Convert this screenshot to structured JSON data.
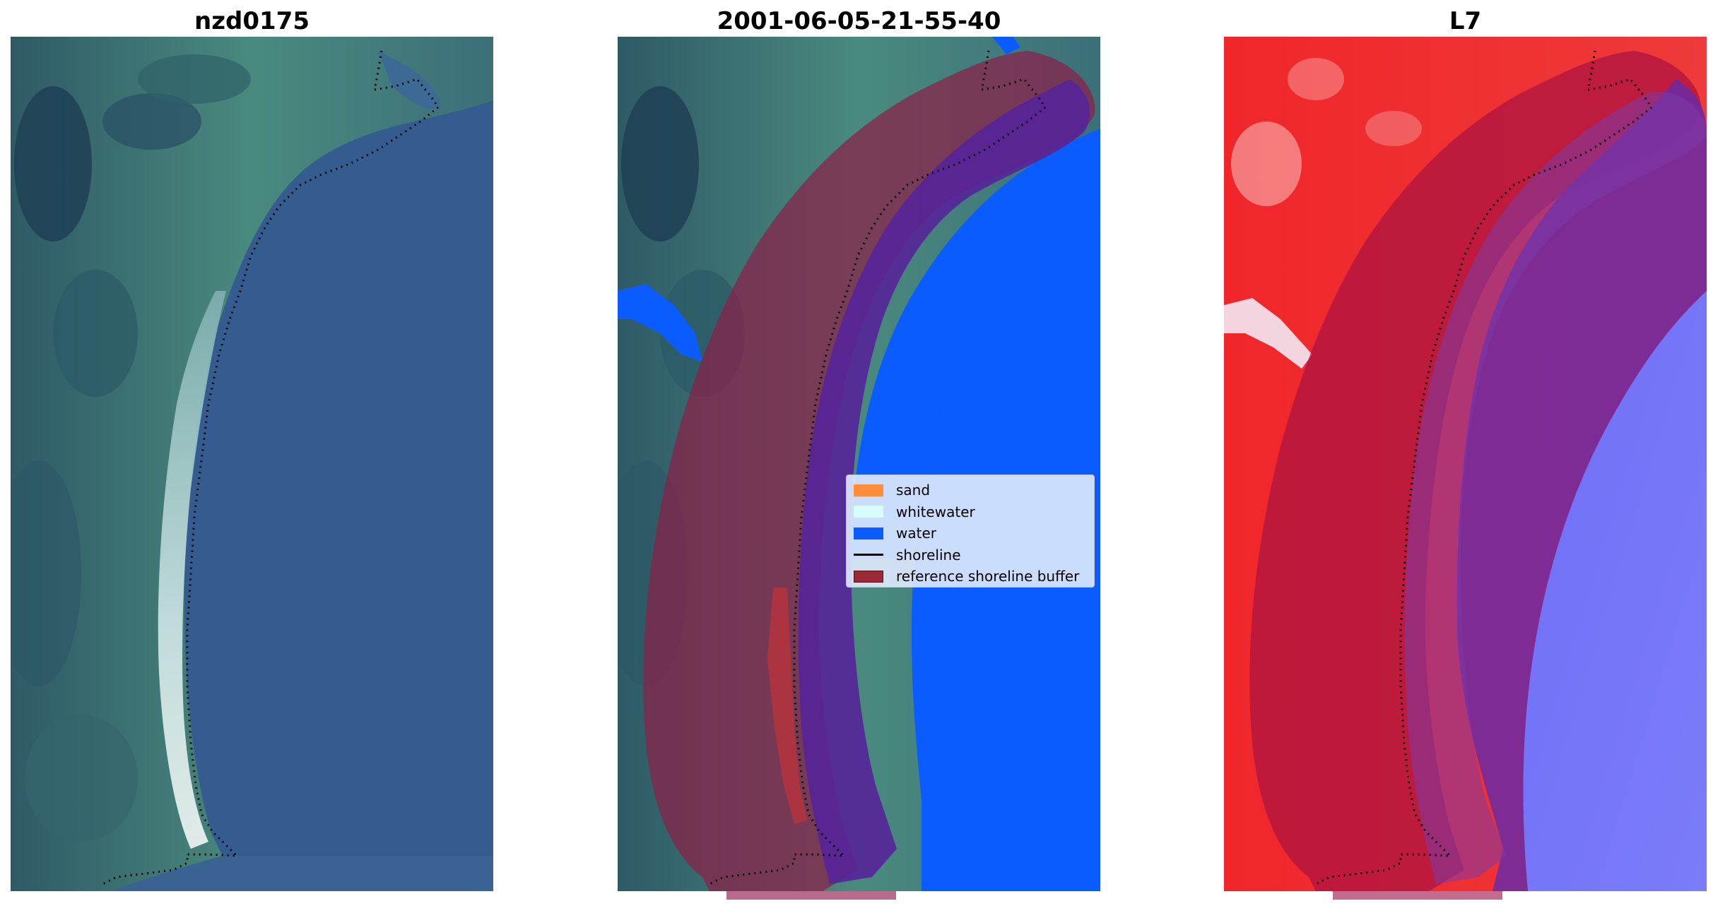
{
  "panels": {
    "left": {
      "title": "nzd0175"
    },
    "center": {
      "title": "2001-06-05-21-55-40"
    },
    "right": {
      "title": "L7"
    }
  },
  "legend": {
    "items": [
      {
        "label": "sand",
        "color": "#ff8c3a",
        "kind": "patch"
      },
      {
        "label": "whitewater",
        "color": "#d8fbfb",
        "kind": "patch"
      },
      {
        "label": "water",
        "color": "#0a5cff",
        "kind": "patch"
      },
      {
        "label": "shoreline",
        "color": "#000000",
        "kind": "line"
      },
      {
        "label": "reference shoreline buffer",
        "color": "#992b34",
        "kind": "patch"
      }
    ]
  },
  "colors": {
    "ocean": "#3a6394",
    "land": "#3c7670",
    "water_class": "#0a5cff",
    "buffer_overlay": "#8b2048",
    "buffer_over_water": "#55239a",
    "index_land_red": "#f0262a",
    "index_water_blue": "#6d6cf6"
  }
}
